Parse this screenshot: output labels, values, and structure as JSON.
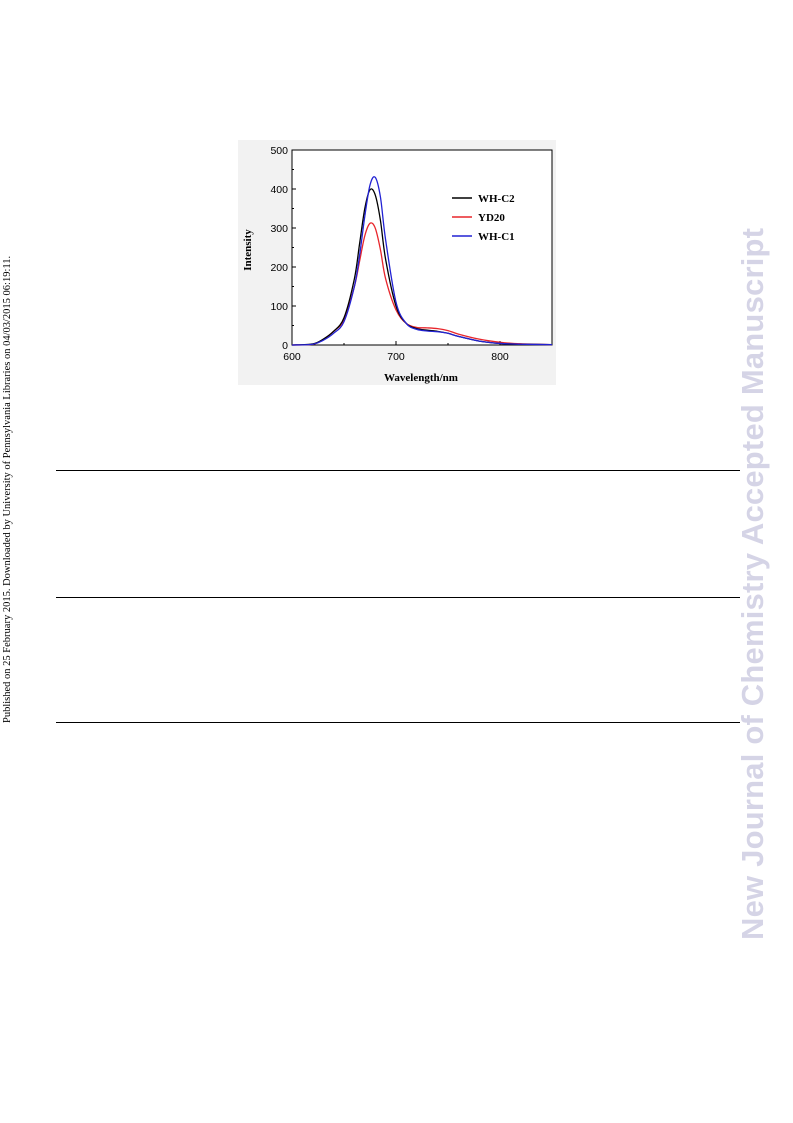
{
  "side_note": "Published on 25 February 2015. Downloaded by University of Pennsylvania Libraries on 04/03/2015 06:19:11.",
  "watermark": "New Journal of Chemistry Accepted Manuscript",
  "chart_data": {
    "type": "line",
    "xlabel": "Wavelength/nm",
    "ylabel": "Intensity",
    "xlim": [
      600,
      850
    ],
    "ylim": [
      0,
      500
    ],
    "xticks": [
      600,
      700,
      800
    ],
    "yticks": [
      0,
      100,
      200,
      300,
      400,
      500
    ],
    "grid": false,
    "legend_position": "top-right",
    "series": [
      {
        "name": "WH-C2",
        "color": "#000000",
        "x": [
          600,
          620,
          630,
          640,
          650,
          660,
          665,
          670,
          675,
          680,
          685,
          690,
          700,
          710,
          720,
          730,
          740,
          750,
          760,
          780,
          800,
          820,
          850
        ],
        "y": [
          0,
          3,
          15,
          35,
          70,
          170,
          260,
          350,
          398,
          385,
          320,
          220,
          100,
          55,
          42,
          38,
          35,
          30,
          22,
          10,
          4,
          2,
          1
        ]
      },
      {
        "name": "YD20",
        "color": "#e8262c",
        "x": [
          600,
          620,
          630,
          640,
          650,
          660,
          665,
          670,
          675,
          680,
          685,
          690,
          700,
          710,
          720,
          730,
          740,
          750,
          760,
          780,
          800,
          820,
          850
        ],
        "y": [
          0,
          2,
          14,
          35,
          65,
          150,
          215,
          280,
          312,
          300,
          245,
          170,
          90,
          55,
          45,
          44,
          42,
          37,
          28,
          15,
          7,
          3,
          1
        ]
      },
      {
        "name": "WH-C1",
        "color": "#2222d4",
        "x": [
          600,
          620,
          630,
          640,
          650,
          660,
          665,
          670,
          675,
          680,
          685,
          690,
          700,
          710,
          720,
          730,
          740,
          750,
          760,
          780,
          800,
          820,
          850
        ],
        "y": [
          0,
          2,
          12,
          30,
          60,
          150,
          230,
          330,
          410,
          430,
          380,
          270,
          110,
          55,
          40,
          36,
          34,
          30,
          22,
          10,
          4,
          2,
          1
        ]
      }
    ]
  }
}
